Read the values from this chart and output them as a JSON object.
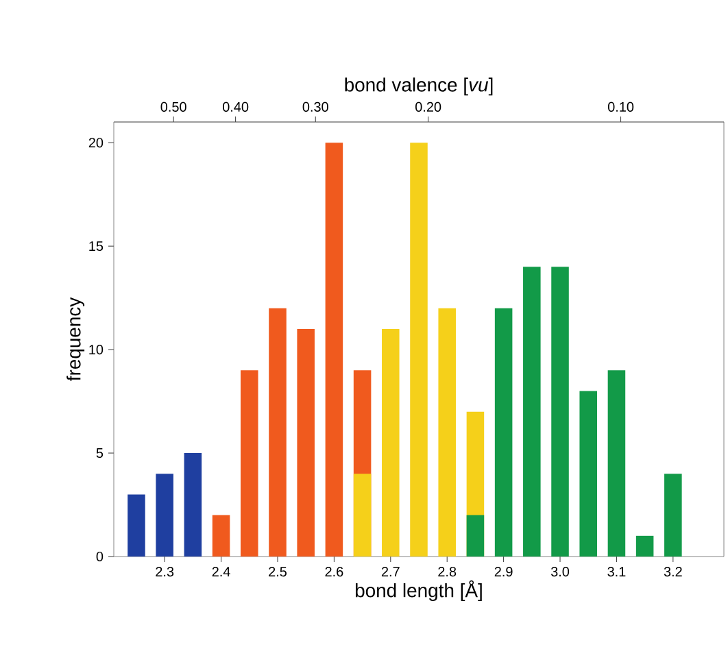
{
  "chart_data": {
    "type": "bar",
    "xlabel": "bond length [Å]",
    "ylabel": "frequency",
    "x2label": "bond valence [*vu*]",
    "series": [
      {
        "color": "#1f3fa0",
        "x": [
          2.25,
          2.3,
          2.35
        ],
        "values": [
          3,
          4,
          5
        ]
      },
      {
        "color": "#f05a1e",
        "x": [
          2.4,
          2.45,
          2.5,
          2.55,
          2.6,
          2.65
        ],
        "values": [
          2,
          9,
          12,
          11,
          20,
          9
        ]
      },
      {
        "color": "#f5d01a",
        "x": [
          2.65,
          2.7,
          2.75,
          2.8,
          2.85
        ],
        "values": [
          4,
          11,
          20,
          12,
          7
        ]
      },
      {
        "color": "#129a48",
        "x": [
          2.85,
          2.9,
          2.95,
          3.0,
          3.05,
          3.1,
          3.15,
          3.2
        ],
        "values": [
          2,
          12,
          14,
          14,
          8,
          9,
          1,
          4
        ]
      }
    ],
    "xlim": [
      2.21,
      3.29
    ],
    "xticks": [
      2.3,
      2.4,
      2.5,
      2.6,
      2.7,
      2.8,
      2.9,
      {
        "value": 3.0,
        "label": "3.0"
      },
      3.1,
      3.2
    ],
    "ylim": [
      0,
      21
    ],
    "yticks": [
      0,
      5,
      10,
      15,
      20
    ],
    "log": "x2",
    "x2lim": [
      0.62,
      0.069
    ],
    "x2ticks": [
      {
        "value": 0.5,
        "label": "0.50"
      },
      {
        "value": 0.4,
        "label": "0.40"
      },
      {
        "value": 0.3,
        "label": "0.30"
      },
      {
        "value": 0.2,
        "label": "0.20"
      },
      {
        "value": 0.1,
        "label": "0.10"
      }
    ],
    "grid": false
  }
}
